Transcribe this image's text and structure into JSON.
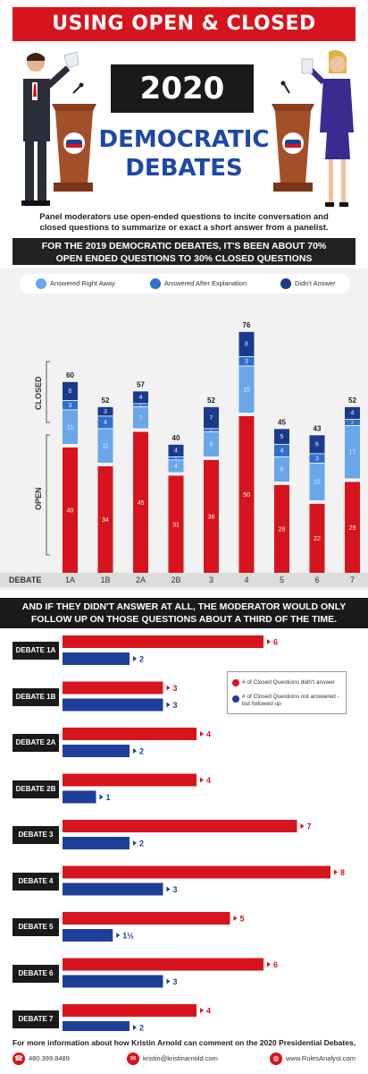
{
  "header": {
    "title": "USING OPEN & CLOSED QUESTIONS",
    "year": "2020",
    "subtitle_line1": "DEMOCRATIC",
    "subtitle_line2": "DEBATES",
    "intro": "Panel moderators use open-ended questions to incite conversation and closed questions to summarize or exact a short answer from a panelist.",
    "stat_line1": "FOR THE 2019 DEMOCRATIC DEBATES, IT'S BEEN ABOUT 70%",
    "stat_line2": "OPEN ENDED QUESTIONS TO 30% CLOSED QUESTIONS"
  },
  "colors": {
    "red": "#d7141d",
    "navy": "#1d3f99",
    "light_blue": "#6aa6ea",
    "mid_blue": "#2f6fd0",
    "dark_blue": "#1a3a8c",
    "podium": "#a3502a"
  },
  "chart_data": [
    {
      "type": "bar",
      "categories": [
        "1A",
        "1B",
        "2A",
        "2B",
        "3",
        "4",
        "5",
        "6",
        "7"
      ],
      "axis_category_label": "DEBATE",
      "ylabel_open": "OPEN",
      "ylabel_closed": "CLOSED",
      "legend": [
        "Answered Right Away",
        "Answered After Explanation",
        "Didn't Answer"
      ],
      "totals": [
        60,
        52,
        57,
        40,
        52,
        76,
        45,
        43,
        52
      ],
      "series": [
        {
          "name": "Open",
          "values": [
            40,
            34,
            45,
            31,
            36,
            50,
            28,
            22,
            29
          ]
        },
        {
          "name": "Answered Right Away",
          "values": [
            11,
            11,
            7,
            4,
            8,
            15,
            8,
            12,
            17
          ]
        },
        {
          "name": "Answered After Explanation",
          "values": [
            3,
            4,
            1,
            1,
            1,
            3,
            4,
            3,
            2
          ]
        },
        {
          "name": "Didn't Answer",
          "values": [
            6,
            3,
            4,
            4,
            7,
            8,
            5,
            6,
            4
          ]
        }
      ]
    },
    {
      "type": "bar",
      "orientation": "horizontal",
      "categories": [
        "DEBATE 1A",
        "DEBATE 1B",
        "DEBATE 2A",
        "DEBATE 2B",
        "DEBATE 3",
        "DEBATE 4",
        "DEBATE 5",
        "DEBATE 6",
        "DEBATE 7"
      ],
      "legend": [
        "# of Closed Questions didn't answer",
        "# of Closed Questions not answered - but followed up"
      ],
      "series": [
        {
          "name": "# of Closed Questions didn't answer",
          "values": [
            6,
            3,
            4,
            4,
            7,
            8,
            5,
            6,
            4
          ]
        },
        {
          "name": "# of Closed Questions not answered - but followed up",
          "values": [
            2,
            3,
            2,
            1,
            2,
            3,
            1.5,
            3,
            2
          ]
        }
      ],
      "value_labels_b": [
        "2",
        "3",
        "2",
        "1",
        "2",
        "3",
        "1½",
        "3",
        "2"
      ]
    }
  ],
  "followup": {
    "line1": "AND IF THEY DIDN'T ANSWER AT ALL, THE MODERATOR WOULD ONLY",
    "line2": "FOLLOW UP ON THOSE QUESTIONS ABOUT A THIRD OF THE TIME."
  },
  "footer": {
    "text": "For more information about how Kristin Arnold can comment on the 2020 Presidential Debates,",
    "phone": "480.399.8489",
    "email": "kristin@kristinarnold.com",
    "web": "www.RulesAnalyst.com",
    "phone_icon": "phone-icon",
    "email_icon": "envelope-icon",
    "web_icon": "globe-icon"
  }
}
